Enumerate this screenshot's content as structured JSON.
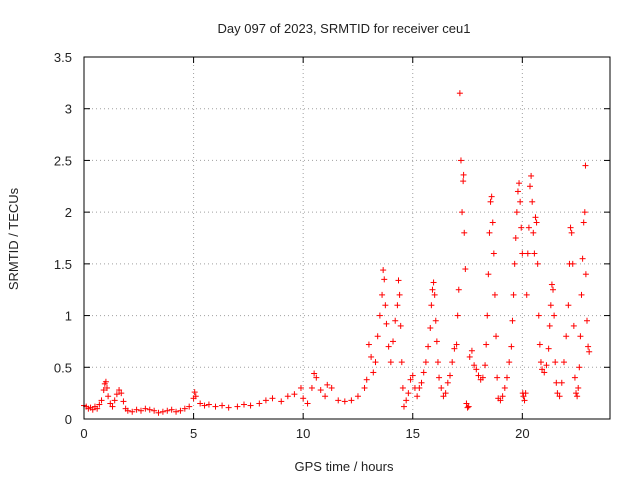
{
  "chart_data": {
    "type": "scatter",
    "title": "Day 097 of 2023, SRMTID for receiver ceu1",
    "xlabel": "GPS time / hours",
    "ylabel": "SRMTID / TECUs",
    "xlim": [
      0,
      24
    ],
    "ylim": [
      0,
      3.5
    ],
    "xticks": [
      0,
      5,
      10,
      15,
      20
    ],
    "xtick_labels": [
      "0",
      "5",
      "10",
      "15",
      "20"
    ],
    "yticks": [
      0,
      0.5,
      1,
      1.5,
      2,
      2.5,
      3,
      3.5
    ],
    "ytick_labels": [
      "0",
      "0.5",
      "1",
      "1.5",
      "2",
      "2.5",
      "3",
      "3.5"
    ],
    "grid": true,
    "marker": "plus",
    "series": [
      {
        "name": "ceu1",
        "color": "#ff0000",
        "points": [
          [
            0.0,
            0.13
          ],
          [
            0.1,
            0.12
          ],
          [
            0.2,
            0.1
          ],
          [
            0.3,
            0.11
          ],
          [
            0.4,
            0.09
          ],
          [
            0.5,
            0.12
          ],
          [
            0.6,
            0.1
          ],
          [
            0.7,
            0.14
          ],
          [
            0.8,
            0.18
          ],
          [
            0.9,
            0.28
          ],
          [
            0.95,
            0.34
          ],
          [
            1.0,
            0.36
          ],
          [
            1.05,
            0.3
          ],
          [
            1.1,
            0.22
          ],
          [
            1.2,
            0.15
          ],
          [
            1.3,
            0.12
          ],
          [
            1.4,
            0.18
          ],
          [
            1.5,
            0.24
          ],
          [
            1.6,
            0.28
          ],
          [
            1.7,
            0.25
          ],
          [
            1.8,
            0.17
          ],
          [
            1.9,
            0.1
          ],
          [
            2.0,
            0.08
          ],
          [
            2.2,
            0.07
          ],
          [
            2.4,
            0.09
          ],
          [
            2.6,
            0.08
          ],
          [
            2.8,
            0.1
          ],
          [
            3.0,
            0.09
          ],
          [
            3.2,
            0.08
          ],
          [
            3.4,
            0.06
          ],
          [
            3.6,
            0.07
          ],
          [
            3.8,
            0.08
          ],
          [
            4.0,
            0.09
          ],
          [
            4.2,
            0.07
          ],
          [
            4.4,
            0.08
          ],
          [
            4.6,
            0.1
          ],
          [
            4.8,
            0.12
          ],
          [
            5.0,
            0.2
          ],
          [
            5.05,
            0.26
          ],
          [
            5.1,
            0.22
          ],
          [
            5.3,
            0.15
          ],
          [
            5.5,
            0.13
          ],
          [
            5.7,
            0.14
          ],
          [
            6.0,
            0.12
          ],
          [
            6.3,
            0.13
          ],
          [
            6.6,
            0.11
          ],
          [
            7.0,
            0.12
          ],
          [
            7.3,
            0.14
          ],
          [
            7.6,
            0.13
          ],
          [
            8.0,
            0.15
          ],
          [
            8.3,
            0.18
          ],
          [
            8.6,
            0.2
          ],
          [
            9.0,
            0.17
          ],
          [
            9.3,
            0.22
          ],
          [
            9.6,
            0.24
          ],
          [
            9.9,
            0.3
          ],
          [
            10.0,
            0.2
          ],
          [
            10.2,
            0.15
          ],
          [
            10.4,
            0.3
          ],
          [
            10.5,
            0.44
          ],
          [
            10.6,
            0.4
          ],
          [
            10.8,
            0.28
          ],
          [
            11.0,
            0.22
          ],
          [
            11.1,
            0.33
          ],
          [
            11.3,
            0.3
          ],
          [
            11.6,
            0.18
          ],
          [
            11.9,
            0.17
          ],
          [
            12.2,
            0.18
          ],
          [
            12.5,
            0.22
          ],
          [
            12.8,
            0.3
          ],
          [
            12.9,
            0.38
          ],
          [
            13.0,
            0.72
          ],
          [
            13.1,
            0.6
          ],
          [
            13.2,
            0.45
          ],
          [
            13.3,
            0.55
          ],
          [
            13.4,
            0.8
          ],
          [
            13.5,
            1.0
          ],
          [
            13.6,
            1.2
          ],
          [
            13.65,
            1.44
          ],
          [
            13.7,
            1.35
          ],
          [
            13.75,
            1.1
          ],
          [
            13.8,
            0.92
          ],
          [
            13.9,
            0.7
          ],
          [
            14.0,
            0.55
          ],
          [
            14.1,
            0.75
          ],
          [
            14.2,
            0.95
          ],
          [
            14.3,
            1.1
          ],
          [
            14.35,
            1.34
          ],
          [
            14.4,
            1.2
          ],
          [
            14.45,
            0.9
          ],
          [
            14.5,
            0.55
          ],
          [
            14.55,
            0.3
          ],
          [
            14.6,
            0.12
          ],
          [
            14.7,
            0.18
          ],
          [
            14.8,
            0.25
          ],
          [
            14.9,
            0.38
          ],
          [
            15.0,
            0.42
          ],
          [
            15.1,
            0.3
          ],
          [
            15.2,
            0.22
          ],
          [
            15.3,
            0.3
          ],
          [
            15.4,
            0.35
          ],
          [
            15.5,
            0.45
          ],
          [
            15.6,
            0.55
          ],
          [
            15.7,
            0.7
          ],
          [
            15.8,
            0.88
          ],
          [
            15.85,
            1.1
          ],
          [
            15.9,
            1.25
          ],
          [
            15.95,
            1.32
          ],
          [
            16.0,
            1.2
          ],
          [
            16.05,
            0.95
          ],
          [
            16.1,
            0.75
          ],
          [
            16.15,
            0.55
          ],
          [
            16.2,
            0.4
          ],
          [
            16.3,
            0.3
          ],
          [
            16.4,
            0.22
          ],
          [
            16.5,
            0.25
          ],
          [
            16.6,
            0.35
          ],
          [
            16.7,
            0.42
          ],
          [
            16.8,
            0.55
          ],
          [
            16.9,
            0.68
          ],
          [
            17.0,
            0.72
          ],
          [
            17.05,
            1.0
          ],
          [
            17.1,
            1.25
          ],
          [
            17.15,
            3.15
          ],
          [
            17.2,
            2.5
          ],
          [
            17.25,
            2.0
          ],
          [
            17.3,
            2.3
          ],
          [
            17.32,
            2.36
          ],
          [
            17.35,
            1.8
          ],
          [
            17.4,
            1.45
          ],
          [
            17.45,
            0.15
          ],
          [
            17.5,
            0.11
          ],
          [
            17.55,
            0.12
          ],
          [
            17.6,
            0.6
          ],
          [
            17.7,
            0.66
          ],
          [
            17.8,
            0.52
          ],
          [
            17.9,
            0.48
          ],
          [
            18.0,
            0.42
          ],
          [
            18.1,
            0.38
          ],
          [
            18.2,
            0.4
          ],
          [
            18.3,
            0.52
          ],
          [
            18.35,
            0.72
          ],
          [
            18.4,
            1.0
          ],
          [
            18.45,
            1.4
          ],
          [
            18.5,
            1.8
          ],
          [
            18.55,
            2.1
          ],
          [
            18.6,
            2.15
          ],
          [
            18.65,
            1.9
          ],
          [
            18.7,
            1.6
          ],
          [
            18.75,
            1.2
          ],
          [
            18.8,
            0.8
          ],
          [
            18.85,
            0.4
          ],
          [
            18.9,
            0.2
          ],
          [
            19.0,
            0.18
          ],
          [
            19.1,
            0.22
          ],
          [
            19.2,
            0.3
          ],
          [
            19.3,
            0.4
          ],
          [
            19.4,
            0.55
          ],
          [
            19.5,
            0.7
          ],
          [
            19.55,
            0.95
          ],
          [
            19.6,
            1.2
          ],
          [
            19.65,
            1.5
          ],
          [
            19.7,
            1.75
          ],
          [
            19.75,
            2.0
          ],
          [
            19.8,
            2.2
          ],
          [
            19.85,
            2.28
          ],
          [
            19.9,
            2.1
          ],
          [
            19.95,
            1.85
          ],
          [
            20.0,
            1.6
          ],
          [
            20.02,
            0.25
          ],
          [
            20.05,
            0.22
          ],
          [
            20.1,
            0.18
          ],
          [
            20.15,
            0.25
          ],
          [
            20.2,
            1.2
          ],
          [
            20.25,
            1.6
          ],
          [
            20.3,
            1.85
          ],
          [
            20.35,
            2.25
          ],
          [
            20.4,
            2.35
          ],
          [
            20.45,
            2.1
          ],
          [
            20.5,
            1.8
          ],
          [
            20.55,
            1.6
          ],
          [
            20.6,
            1.95
          ],
          [
            20.65,
            1.9
          ],
          [
            20.7,
            1.5
          ],
          [
            20.75,
            1.0
          ],
          [
            20.8,
            0.72
          ],
          [
            20.85,
            0.55
          ],
          [
            20.9,
            0.48
          ],
          [
            21.0,
            0.45
          ],
          [
            21.1,
            0.52
          ],
          [
            21.2,
            0.68
          ],
          [
            21.25,
            0.9
          ],
          [
            21.3,
            1.1
          ],
          [
            21.35,
            1.3
          ],
          [
            21.4,
            1.25
          ],
          [
            21.45,
            1.0
          ],
          [
            21.5,
            0.55
          ],
          [
            21.55,
            0.35
          ],
          [
            21.6,
            0.25
          ],
          [
            21.7,
            0.22
          ],
          [
            21.8,
            0.35
          ],
          [
            21.9,
            0.55
          ],
          [
            22.0,
            0.8
          ],
          [
            22.1,
            1.1
          ],
          [
            22.15,
            1.5
          ],
          [
            22.2,
            1.85
          ],
          [
            22.25,
            1.8
          ],
          [
            22.3,
            1.5
          ],
          [
            22.35,
            0.9
          ],
          [
            22.4,
            0.4
          ],
          [
            22.45,
            0.25
          ],
          [
            22.5,
            0.22
          ],
          [
            22.55,
            0.3
          ],
          [
            22.6,
            0.5
          ],
          [
            22.65,
            0.8
          ],
          [
            22.7,
            1.2
          ],
          [
            22.75,
            1.55
          ],
          [
            22.8,
            1.9
          ],
          [
            22.85,
            2.0
          ],
          [
            22.88,
            2.45
          ],
          [
            22.9,
            1.4
          ],
          [
            22.95,
            0.95
          ],
          [
            23.0,
            0.7
          ],
          [
            23.05,
            0.65
          ]
        ]
      }
    ]
  }
}
